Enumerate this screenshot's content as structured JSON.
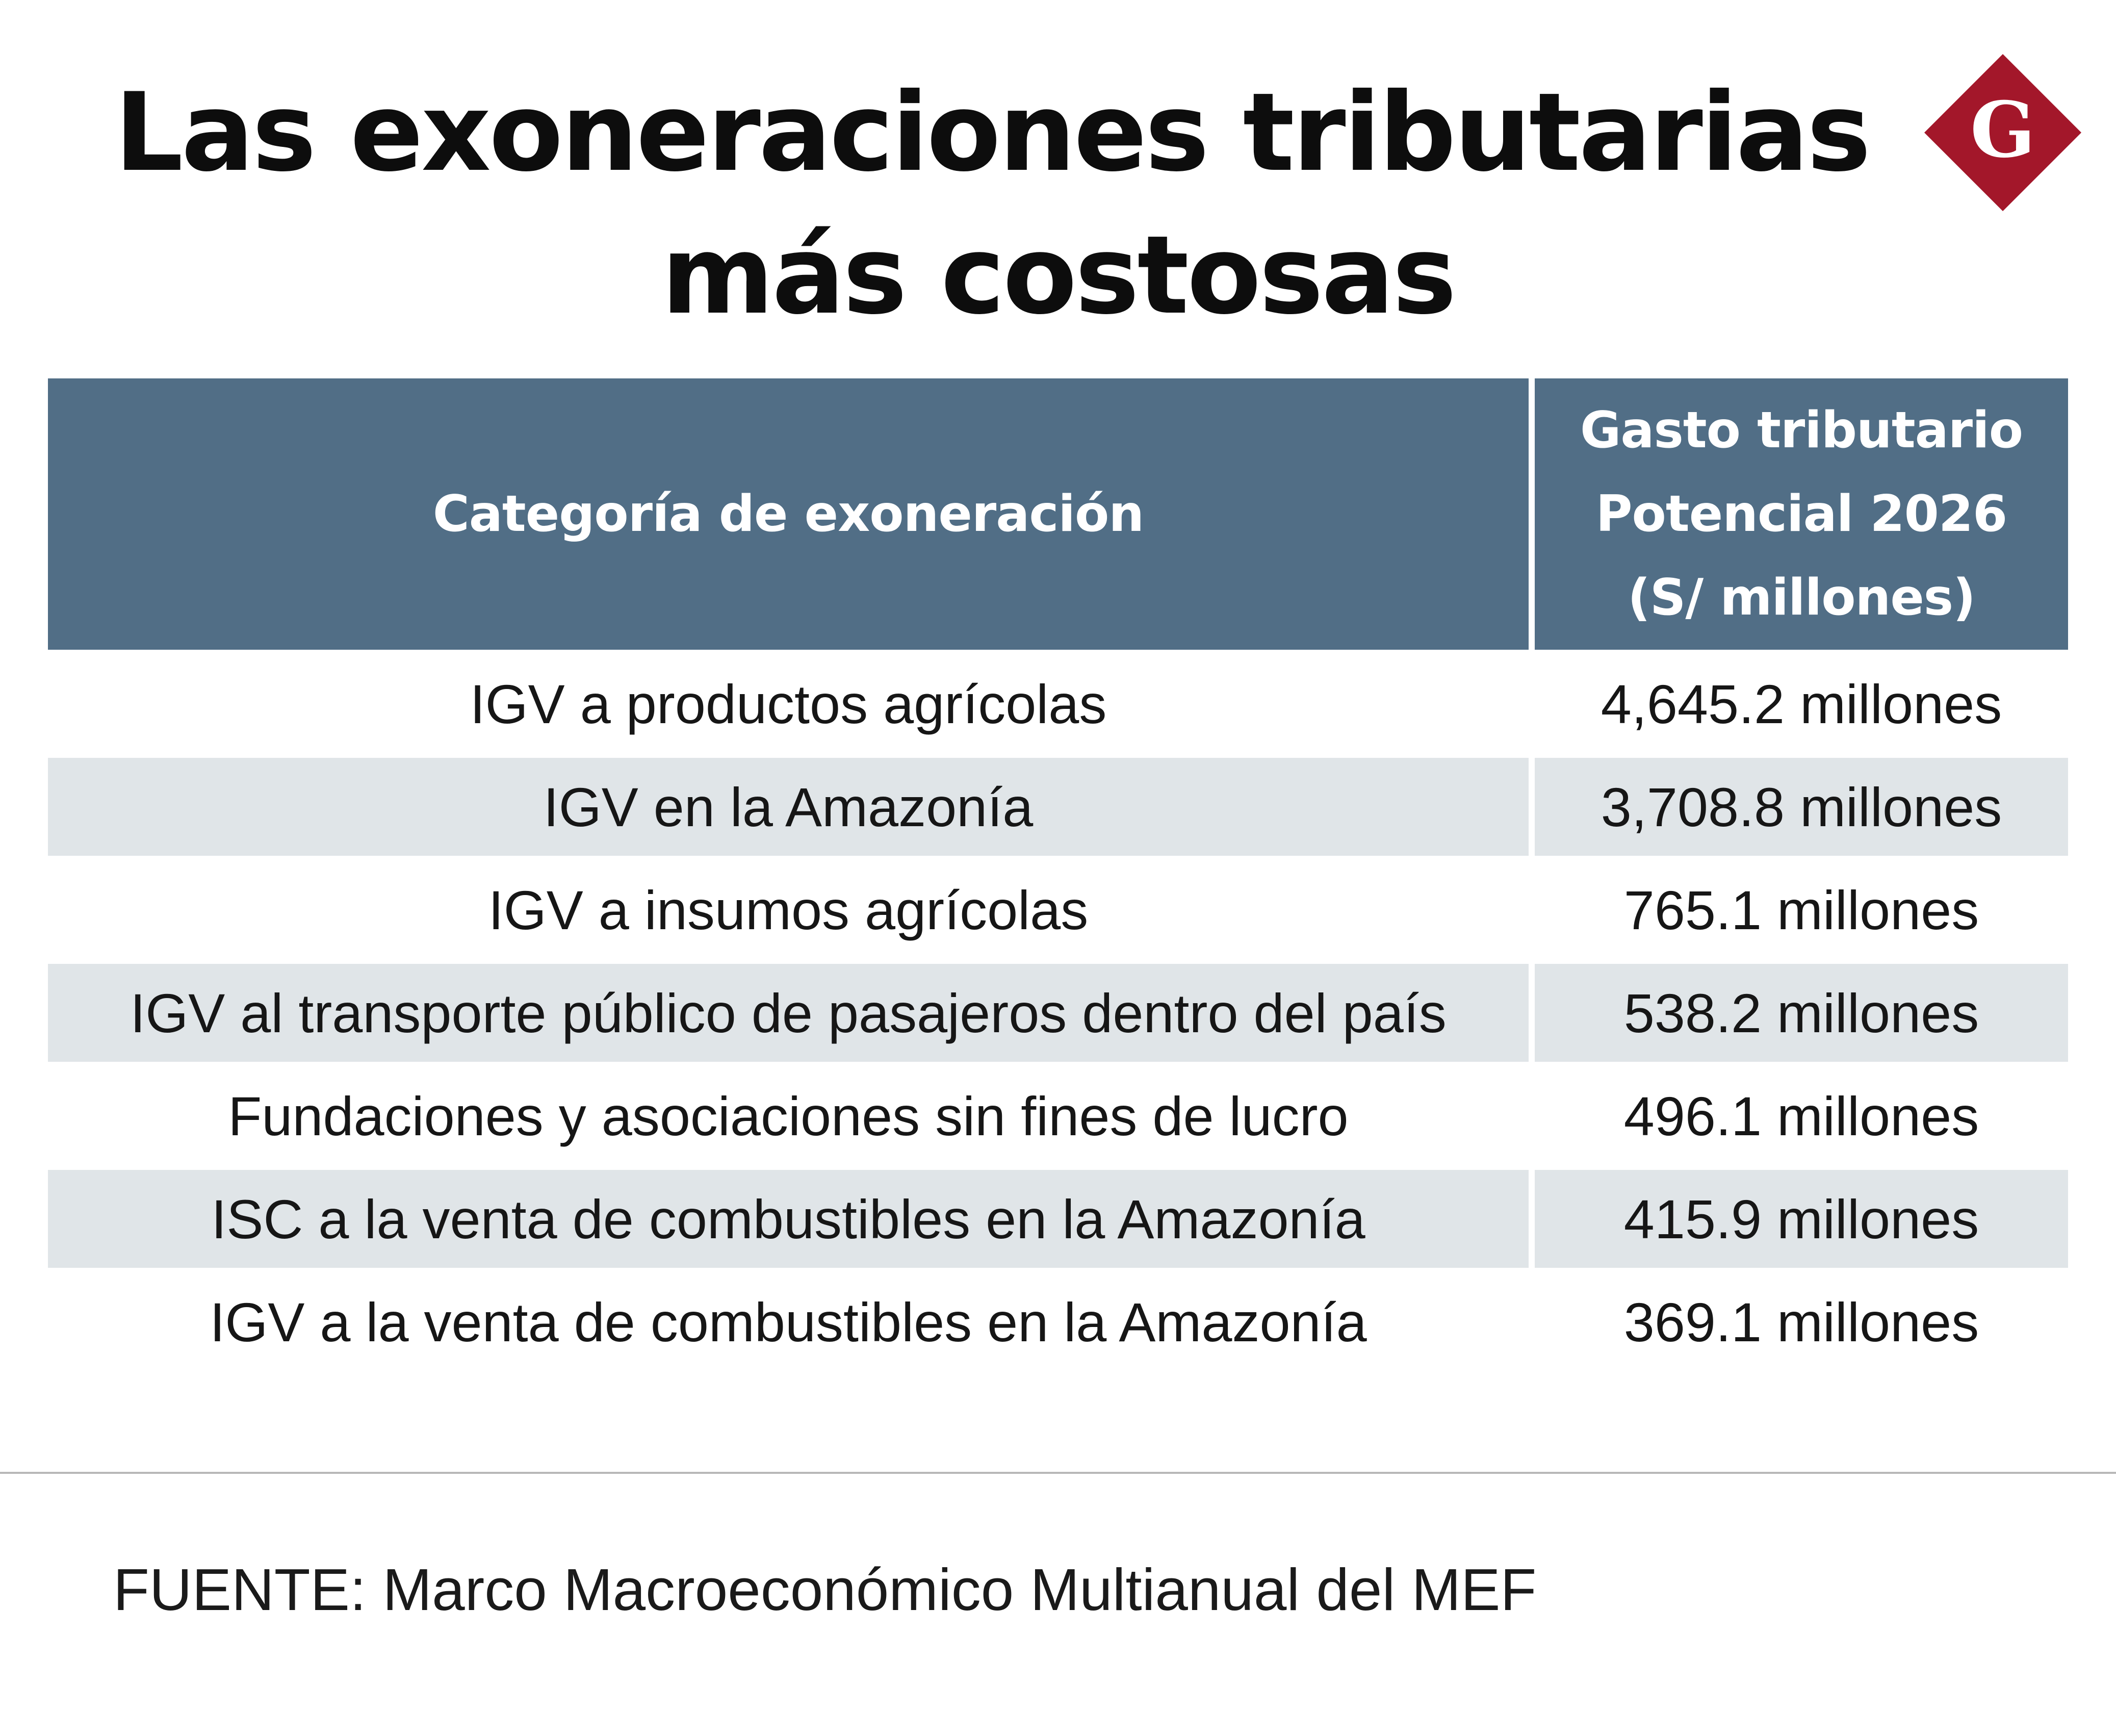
{
  "title": {
    "line1": "Las exoneraciones tributarias",
    "line2": "más costosas"
  },
  "logo": {
    "letter": "G",
    "color": "#a3172a"
  },
  "chart_data": {
    "type": "table",
    "columns": [
      "Categoría de exoneración",
      "Gasto tributario Potencial 2026 (S/ millones)"
    ],
    "header": {
      "category": "Categoría de exoneración",
      "value_lines": [
        "Gasto tributario",
        "Potencial 2026",
        "(S/ millones)"
      ]
    },
    "rows": [
      {
        "category": "IGV a productos agrícolas",
        "value": 4645.2,
        "display": "4,645.2 millones"
      },
      {
        "category": "IGV en la Amazonía",
        "value": 3708.8,
        "display": "3,708.8 millones"
      },
      {
        "category": "IGV a insumos agrícolas",
        "value": 765.1,
        "display": "765.1 millones"
      },
      {
        "category": "IGV al transporte público de pasajeros dentro del país",
        "value": 538.2,
        "display": "538.2 millones"
      },
      {
        "category": "Fundaciones y asociaciones sin fines de lucro",
        "value": 496.1,
        "display": "496.1 millones"
      },
      {
        "category": "ISC a la venta de combustibles en la Amazonía",
        "value": 415.9,
        "display": "415.9 millones"
      },
      {
        "category": "IGV a la venta de combustibles en la Amazonía",
        "value": 369.1,
        "display": "369.1 millones"
      }
    ],
    "colors": {
      "header_bg": "#516e86",
      "header_text": "#ffffff",
      "shaded_row": "#e0e5e8"
    }
  },
  "source": "FUENTE: Marco Macroeconómico Multianual del MEF"
}
